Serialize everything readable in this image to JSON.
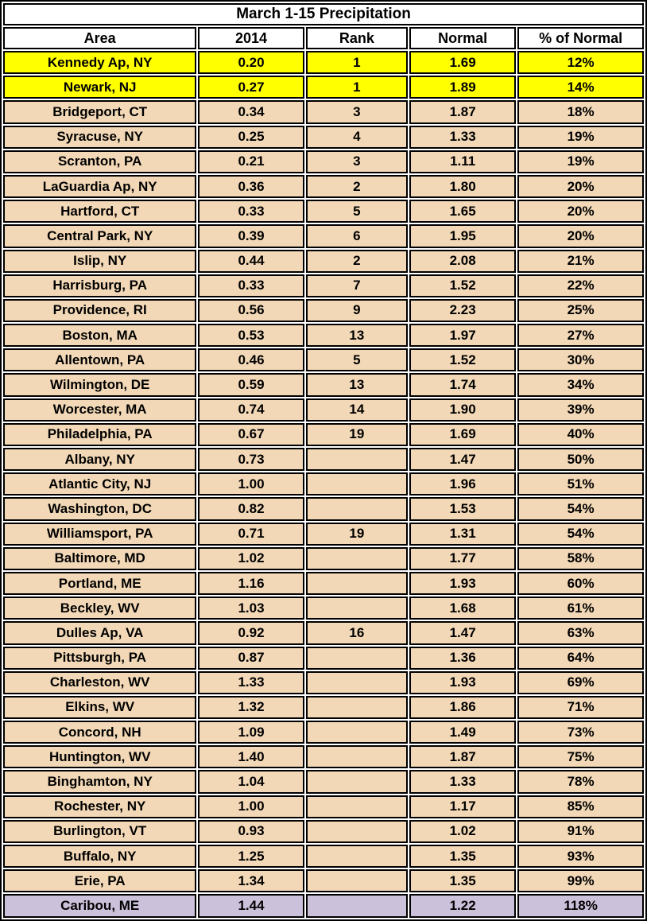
{
  "chart_data": {
    "type": "table",
    "title": "March 1-15 Precipitation",
    "columns": [
      "Area",
      "2014",
      "Rank",
      "Normal",
      "% of Normal"
    ],
    "rows": [
      {
        "area": "Kennedy Ap, NY",
        "y2014": "0.20",
        "rank": "1",
        "normal": "1.69",
        "pct_of_normal": "12%",
        "highlight": "yellow"
      },
      {
        "area": "Newark, NJ",
        "y2014": "0.27",
        "rank": "1",
        "normal": "1.89",
        "pct_of_normal": "14%",
        "highlight": "yellow"
      },
      {
        "area": "Bridgeport, CT",
        "y2014": "0.34",
        "rank": "3",
        "normal": "1.87",
        "pct_of_normal": "18%",
        "highlight": "tan"
      },
      {
        "area": "Syracuse, NY",
        "y2014": "0.25",
        "rank": "4",
        "normal": "1.33",
        "pct_of_normal": "19%",
        "highlight": "tan"
      },
      {
        "area": "Scranton, PA",
        "y2014": "0.21",
        "rank": "3",
        "normal": "1.11",
        "pct_of_normal": "19%",
        "highlight": "tan"
      },
      {
        "area": "LaGuardia Ap, NY",
        "y2014": "0.36",
        "rank": "2",
        "normal": "1.80",
        "pct_of_normal": "20%",
        "highlight": "tan"
      },
      {
        "area": "Hartford, CT",
        "y2014": "0.33",
        "rank": "5",
        "normal": "1.65",
        "pct_of_normal": "20%",
        "highlight": "tan"
      },
      {
        "area": "Central Park, NY",
        "y2014": "0.39",
        "rank": "6",
        "normal": "1.95",
        "pct_of_normal": "20%",
        "highlight": "tan"
      },
      {
        "area": "Islip, NY",
        "y2014": "0.44",
        "rank": "2",
        "normal": "2.08",
        "pct_of_normal": "21%",
        "highlight": "tan"
      },
      {
        "area": "Harrisburg, PA",
        "y2014": "0.33",
        "rank": "7",
        "normal": "1.52",
        "pct_of_normal": "22%",
        "highlight": "tan"
      },
      {
        "area": "Providence, RI",
        "y2014": "0.56",
        "rank": "9",
        "normal": "2.23",
        "pct_of_normal": "25%",
        "highlight": "tan"
      },
      {
        "area": "Boston, MA",
        "y2014": "0.53",
        "rank": "13",
        "normal": "1.97",
        "pct_of_normal": "27%",
        "highlight": "tan"
      },
      {
        "area": "Allentown, PA",
        "y2014": "0.46",
        "rank": "5",
        "normal": "1.52",
        "pct_of_normal": "30%",
        "highlight": "tan"
      },
      {
        "area": "Wilmington, DE",
        "y2014": "0.59",
        "rank": "13",
        "normal": "1.74",
        "pct_of_normal": "34%",
        "highlight": "tan"
      },
      {
        "area": "Worcester, MA",
        "y2014": "0.74",
        "rank": "14",
        "normal": "1.90",
        "pct_of_normal": "39%",
        "highlight": "tan"
      },
      {
        "area": "Philadelphia, PA",
        "y2014": "0.67",
        "rank": "19",
        "normal": "1.69",
        "pct_of_normal": "40%",
        "highlight": "tan"
      },
      {
        "area": "Albany, NY",
        "y2014": "0.73",
        "rank": "",
        "normal": "1.47",
        "pct_of_normal": "50%",
        "highlight": "tan"
      },
      {
        "area": "Atlantic City, NJ",
        "y2014": "1.00",
        "rank": "",
        "normal": "1.96",
        "pct_of_normal": "51%",
        "highlight": "tan"
      },
      {
        "area": "Washington, DC",
        "y2014": "0.82",
        "rank": "",
        "normal": "1.53",
        "pct_of_normal": "54%",
        "highlight": "tan"
      },
      {
        "area": "Williamsport, PA",
        "y2014": "0.71",
        "rank": "19",
        "normal": "1.31",
        "pct_of_normal": "54%",
        "highlight": "tan"
      },
      {
        "area": "Baltimore, MD",
        "y2014": "1.02",
        "rank": "",
        "normal": "1.77",
        "pct_of_normal": "58%",
        "highlight": "tan"
      },
      {
        "area": "Portland, ME",
        "y2014": "1.16",
        "rank": "",
        "normal": "1.93",
        "pct_of_normal": "60%",
        "highlight": "tan"
      },
      {
        "area": "Beckley, WV",
        "y2014": "1.03",
        "rank": "",
        "normal": "1.68",
        "pct_of_normal": "61%",
        "highlight": "tan"
      },
      {
        "area": "Dulles Ap, VA",
        "y2014": "0.92",
        "rank": "16",
        "normal": "1.47",
        "pct_of_normal": "63%",
        "highlight": "tan"
      },
      {
        "area": "Pittsburgh, PA",
        "y2014": "0.87",
        "rank": "",
        "normal": "1.36",
        "pct_of_normal": "64%",
        "highlight": "tan"
      },
      {
        "area": "Charleston, WV",
        "y2014": "1.33",
        "rank": "",
        "normal": "1.93",
        "pct_of_normal": "69%",
        "highlight": "tan"
      },
      {
        "area": "Elkins, WV",
        "y2014": "1.32",
        "rank": "",
        "normal": "1.86",
        "pct_of_normal": "71%",
        "highlight": "tan"
      },
      {
        "area": "Concord, NH",
        "y2014": "1.09",
        "rank": "",
        "normal": "1.49",
        "pct_of_normal": "73%",
        "highlight": "tan"
      },
      {
        "area": "Huntington, WV",
        "y2014": "1.40",
        "rank": "",
        "normal": "1.87",
        "pct_of_normal": "75%",
        "highlight": "tan"
      },
      {
        "area": "Binghamton, NY",
        "y2014": "1.04",
        "rank": "",
        "normal": "1.33",
        "pct_of_normal": "78%",
        "highlight": "tan"
      },
      {
        "area": "Rochester, NY",
        "y2014": "1.00",
        "rank": "",
        "normal": "1.17",
        "pct_of_normal": "85%",
        "highlight": "tan"
      },
      {
        "area": "Burlington, VT",
        "y2014": "0.93",
        "rank": "",
        "normal": "1.02",
        "pct_of_normal": "91%",
        "highlight": "tan"
      },
      {
        "area": "Buffalo, NY",
        "y2014": "1.25",
        "rank": "",
        "normal": "1.35",
        "pct_of_normal": "93%",
        "highlight": "tan"
      },
      {
        "area": "Erie, PA",
        "y2014": "1.34",
        "rank": "",
        "normal": "1.35",
        "pct_of_normal": "99%",
        "highlight": "tan"
      },
      {
        "area": "Caribou, ME",
        "y2014": "1.44",
        "rank": "",
        "normal": "1.22",
        "pct_of_normal": "118%",
        "highlight": "lavender"
      }
    ]
  },
  "colors": {
    "row_default": "#f2d8b6",
    "row_record_low": "#ffff00",
    "row_above_normal": "#ccc1da",
    "border": "#000000",
    "header_background": "#ffffff"
  }
}
